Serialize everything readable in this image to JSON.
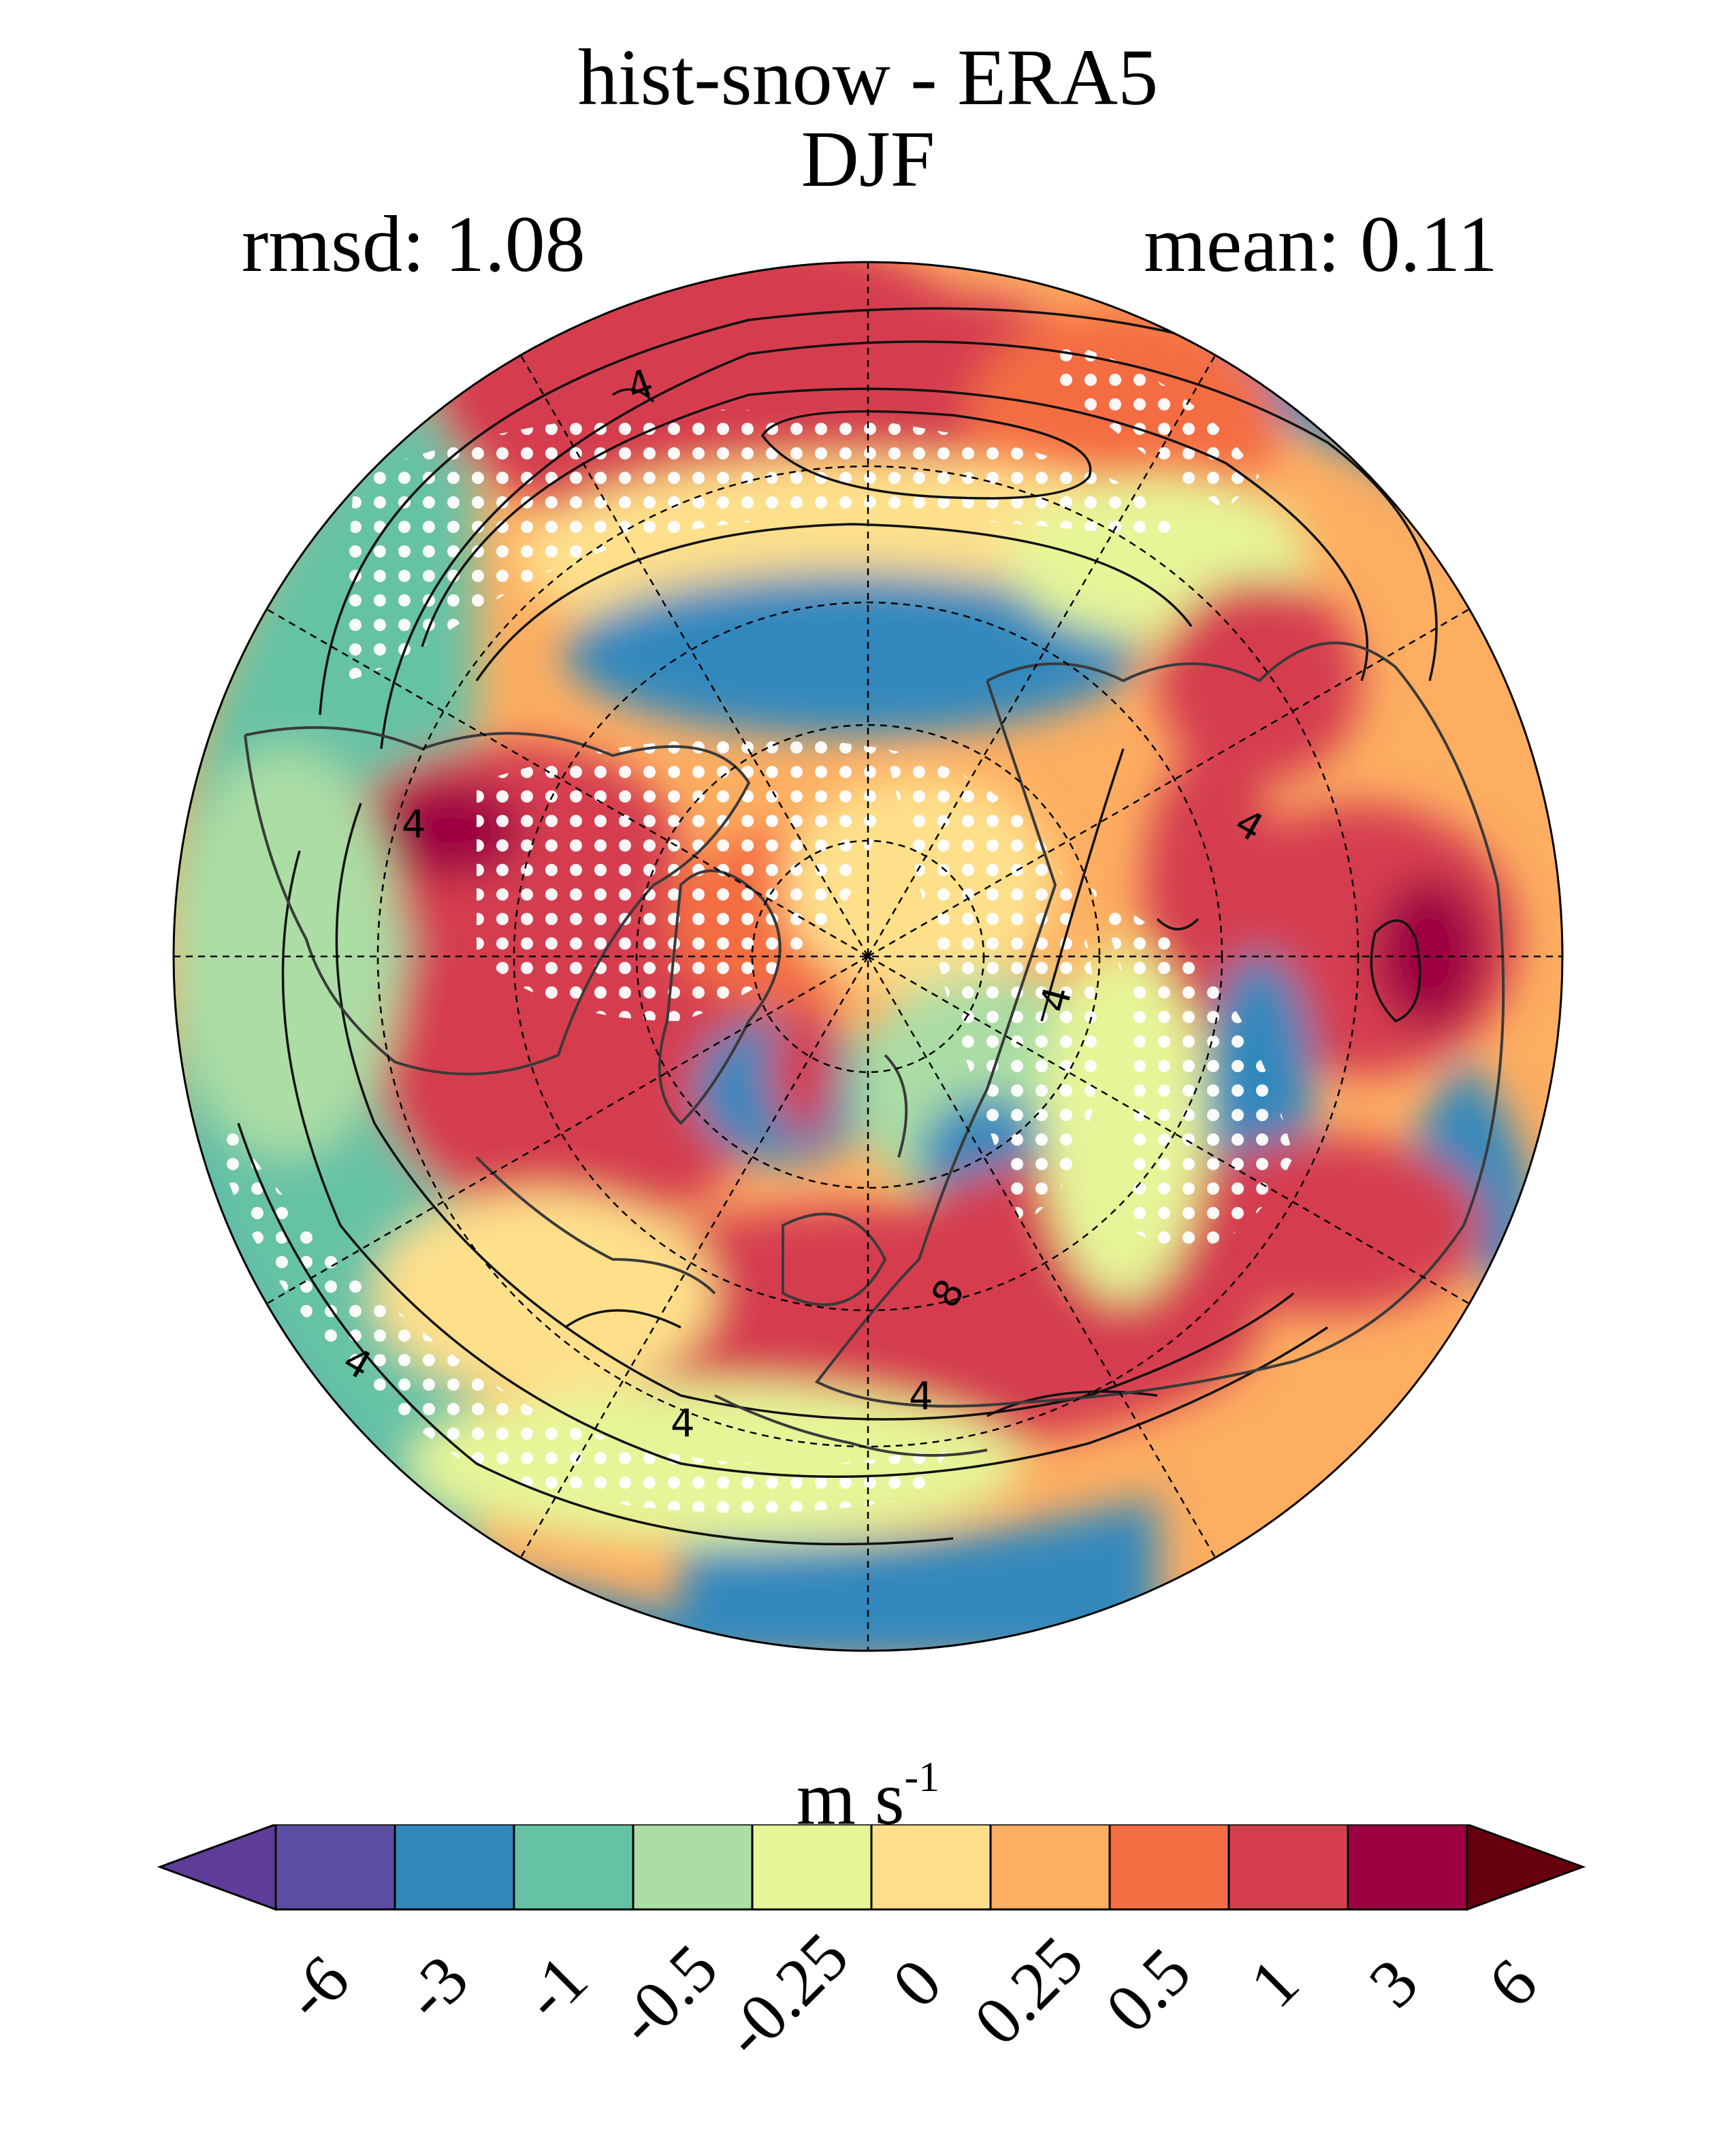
{
  "title": {
    "line1": "hist-snow - ERA5",
    "line2": "DJF"
  },
  "stats": {
    "rmsd": "rmsd: 1.08",
    "mean": "mean: 0.11"
  },
  "map": {
    "projection": "north-polar-stereographic",
    "stippling_color": "#ffffff",
    "contour_labels": [
      "4",
      "4",
      "4",
      "4",
      "4",
      "4",
      "8",
      "4"
    ]
  },
  "colorbar": {
    "units_base": "m s",
    "units_exp": "-1",
    "levels": [
      "-6",
      "-3",
      "-1",
      "-0.5",
      "-0.25",
      "0",
      "0.25",
      "0.5",
      "1",
      "3",
      "6"
    ],
    "colors": [
      "#5e3c99",
      "#5c4fa3",
      "#3288bd",
      "#66c2a5",
      "#abdda4",
      "#e6f598",
      "#fee08b",
      "#fdae61",
      "#f46d43",
      "#d53e4f",
      "#9e0142",
      "#67000d"
    ]
  }
}
